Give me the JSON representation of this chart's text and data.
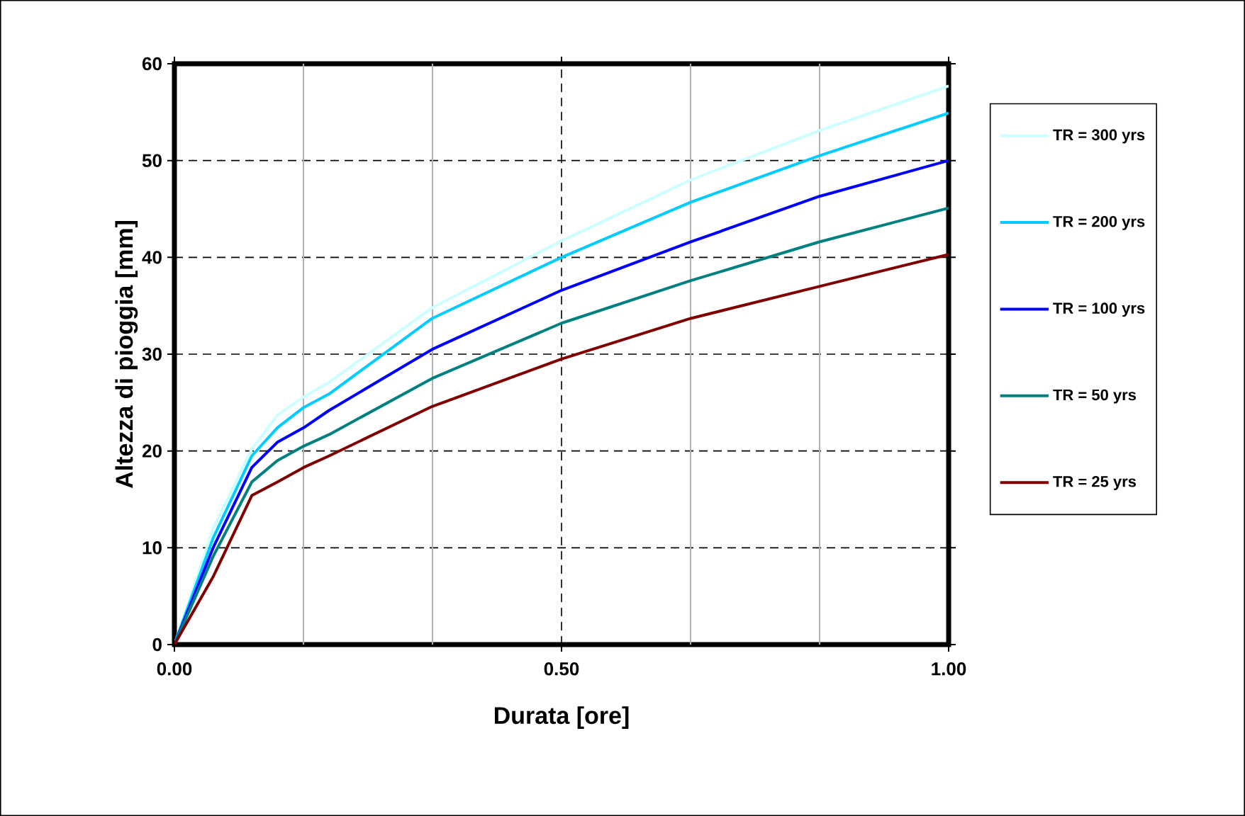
{
  "chart_data": {
    "type": "line",
    "xlabel": "Durata [ore]",
    "ylabel": "Altezza di pioggia [mm]",
    "x": [
      0,
      0.05,
      0.1,
      0.133,
      0.167,
      0.2,
      0.333,
      0.5,
      0.667,
      0.833,
      1.0
    ],
    "series": [
      {
        "name": "TR = 300 yrs",
        "color": "#ccffff",
        "values": [
          0,
          12.0,
          20.2,
          23.7,
          25.6,
          27.1,
          34.8,
          41.7,
          48.0,
          53.1,
          57.7
        ]
      },
      {
        "name": "TR = 200 yrs",
        "color": "#00ccff",
        "values": [
          0,
          11.0,
          19.5,
          22.4,
          24.5,
          25.9,
          33.7,
          40.0,
          45.7,
          50.5,
          54.9
        ]
      },
      {
        "name": "TR = 100 yrs",
        "color": "#0000ff",
        "values": [
          0,
          10.0,
          18.3,
          20.9,
          22.4,
          24.2,
          30.5,
          36.6,
          41.6,
          46.3,
          50.0
        ]
      },
      {
        "name": "TR = 50 yrs",
        "color": "#008080",
        "values": [
          0,
          9.1,
          16.8,
          19.0,
          20.5,
          21.7,
          27.5,
          33.2,
          37.6,
          41.6,
          45.1
        ]
      },
      {
        "name": "TR = 25 yrs",
        "color": "#800000",
        "values": [
          0,
          7.0,
          15.4,
          16.8,
          18.3,
          19.5,
          24.6,
          29.5,
          33.7,
          37.0,
          40.3
        ]
      }
    ],
    "xlim": [
      0,
      1
    ],
    "ylim": [
      0,
      60
    ],
    "xticks": [
      {
        "value": 0,
        "label": "0.00"
      },
      {
        "value": 0.16667,
        "label": null
      },
      {
        "value": 0.33333,
        "label": null
      },
      {
        "value": 0.5,
        "label": "0.50"
      },
      {
        "value": 0.66667,
        "label": null
      },
      {
        "value": 0.83333,
        "label": null
      },
      {
        "value": 1,
        "label": "1.00"
      }
    ],
    "yticks": [
      0,
      10,
      20,
      30,
      40,
      50,
      60
    ],
    "grid": true,
    "legend": "right",
    "marker": "none",
    "line_style": "solid"
  }
}
